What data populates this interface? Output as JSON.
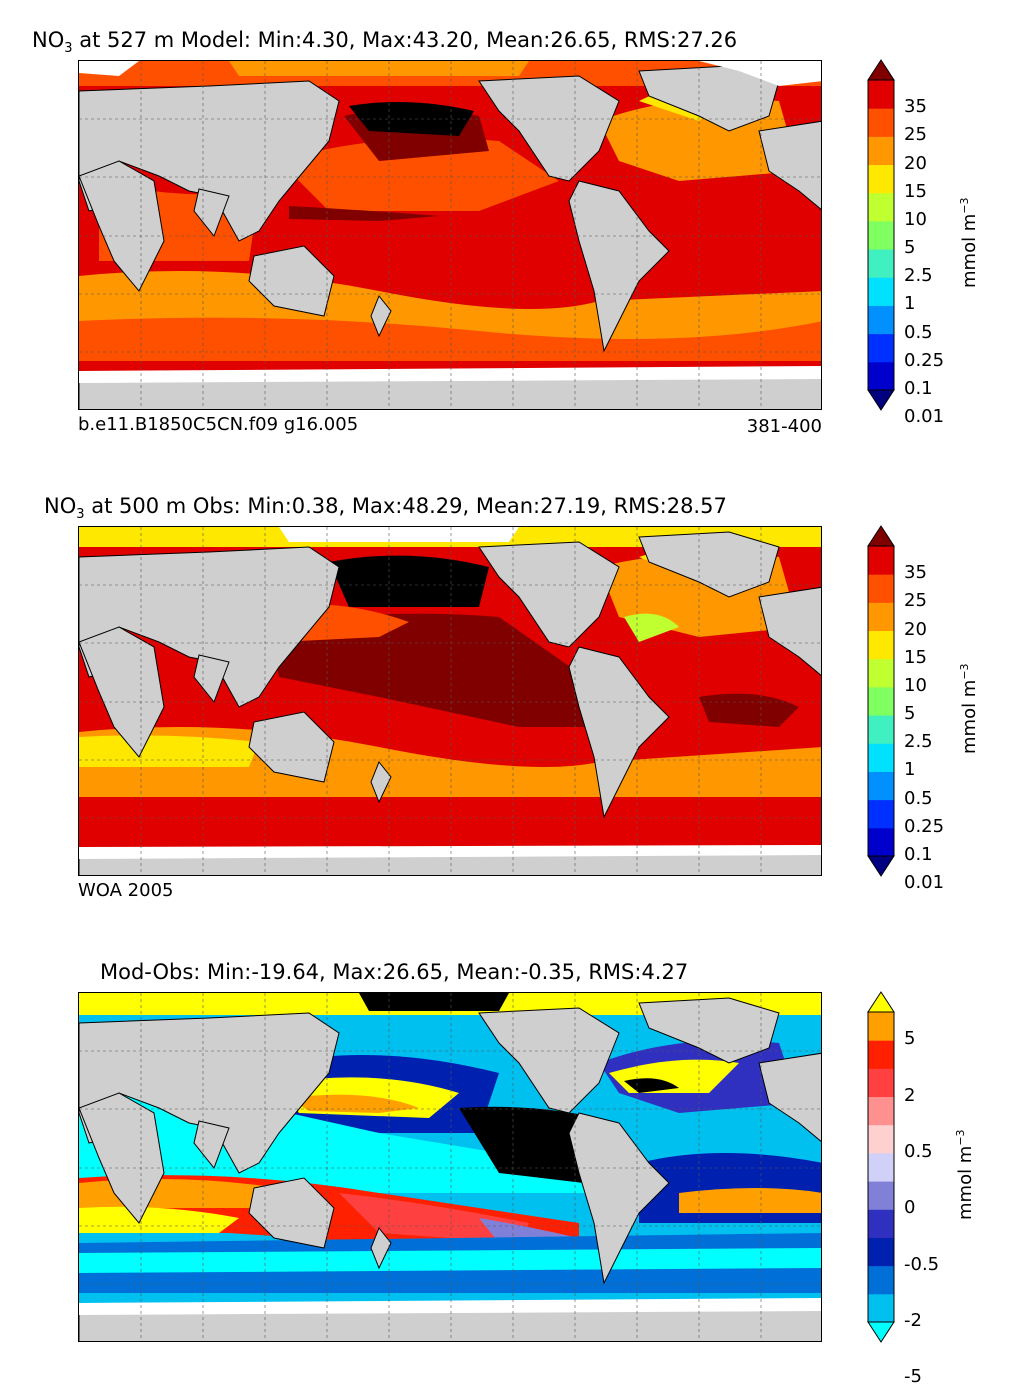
{
  "panels": [
    {
      "id": "model",
      "title_pre": "NO",
      "title_sub": "3",
      "title_post": " at 527 m Model: Min:4.30, Max:43.20, Mean:26.65, RMS:27.26",
      "caption_left": "b.e11.B1850C5CN.f09 g16.005",
      "caption_right": "381-400",
      "units_base": "mmol m",
      "units_exp": "−3",
      "colorbar_ticks": [
        "35",
        "25",
        "20",
        "15",
        "10",
        "5",
        "2.5",
        "1",
        "0.5",
        "0.25",
        "0.1",
        "0.01"
      ],
      "colorbar_colors": [
        "#000080",
        "#0000cd",
        "#0030ff",
        "#0090ff",
        "#00e0ff",
        "#40f0c0",
        "#80ff60",
        "#c0ff30",
        "#ffe800",
        "#ff9800",
        "#ff5000",
        "#e00000",
        "#800000"
      ]
    },
    {
      "id": "obs",
      "title_pre": "NO",
      "title_sub": "3",
      "title_post": " at 500 m Obs: Min:0.38, Max:48.29, Mean:27.19, RMS:28.57",
      "caption_left": "WOA 2005",
      "caption_right": "",
      "units_base": "mmol m",
      "units_exp": "−3",
      "colorbar_ticks": [
        "35",
        "25",
        "20",
        "15",
        "10",
        "5",
        "2.5",
        "1",
        "0.5",
        "0.25",
        "0.1",
        "0.01"
      ],
      "colorbar_colors": [
        "#000080",
        "#0000cd",
        "#0030ff",
        "#0090ff",
        "#00e0ff",
        "#40f0c0",
        "#80ff60",
        "#c0ff30",
        "#ffe800",
        "#ff9800",
        "#ff5000",
        "#e00000",
        "#800000"
      ]
    },
    {
      "id": "diff",
      "title_pre": "Mod-Obs: Min:-19.64, Max:26.65, Mean:-0.35, RMS:4.27",
      "title_sub": "",
      "title_post": "",
      "caption_left": "",
      "caption_right": "",
      "units_base": "mmol m",
      "units_exp": "−3",
      "colorbar_ticks": [
        "5",
        "2",
        "0.5",
        "0",
        "-0.5",
        "-2",
        "-5"
      ],
      "colorbar_colors": [
        "#00ffff",
        "#00c0f0",
        "#0070d8",
        "#0020b0",
        "#3030c0",
        "#8080d8",
        "#d0d0f8",
        "#ffd0d0",
        "#ff9090",
        "#ff4040",
        "#ff2000",
        "#ffa000",
        "#ffff00"
      ]
    }
  ],
  "colors": {
    "land": "#cfcfcf",
    "ice": "#ffffff",
    "max": "#000000"
  }
}
